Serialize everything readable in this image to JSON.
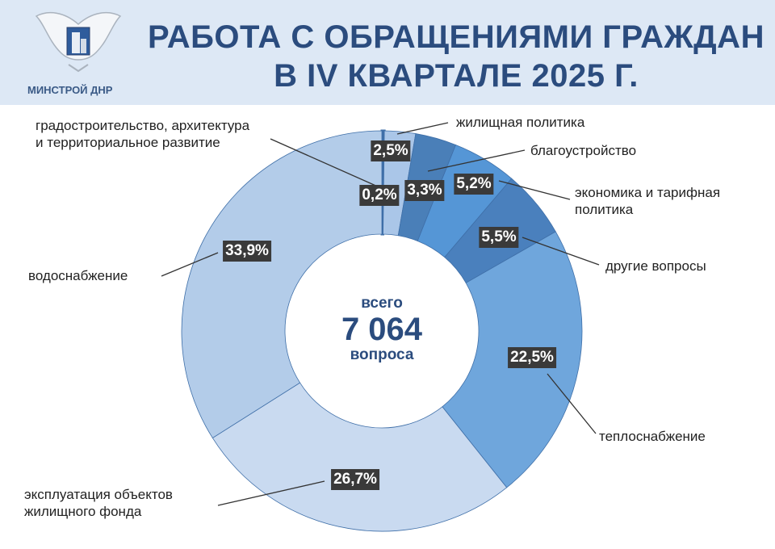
{
  "header": {
    "title_line1": "РАБОТА С ОБРАЩЕНИЯМИ ГРАЖДАН",
    "title_line2": "В IV КВАРТАЛЕ 2025 Г.",
    "logo_text": "МИНСТРОЙ ДНР",
    "background": "#dde8f5",
    "title_color": "#2b4c7e"
  },
  "center": {
    "top": "всего",
    "total": "7 064",
    "bottom": "вопроса"
  },
  "chart_data": {
    "type": "pie",
    "donut": true,
    "total": 7064,
    "slices": [
      {
        "label": "градостроительство, архитектура и территориальное развитие",
        "value": 0.2,
        "display": "0,2%",
        "color": "#3f6fa8"
      },
      {
        "label": "жилищная политика",
        "value": 2.5,
        "display": "2,5%",
        "color": "#aac6e8"
      },
      {
        "label": "благоустройство",
        "value": 3.3,
        "display": "3,3%",
        "color": "#4a7fb8"
      },
      {
        "label": "экономика и тарифная политика",
        "value": 5.2,
        "display": "5,2%",
        "color": "#5596d6"
      },
      {
        "label": "другие вопросы",
        "value": 5.5,
        "display": "5,5%",
        "color": "#4a80bd"
      },
      {
        "label": "теплоснабжение",
        "value": 22.5,
        "display": "22,5%",
        "color": "#6fa6dc"
      },
      {
        "label": "эксплуатация объектов жилищного фонда",
        "value": 26.7,
        "display": "26,7%",
        "color": "#c9daf0"
      },
      {
        "label": "водоснабжение",
        "value": 33.9,
        "display": "33,9%",
        "color": "#b3cce9"
      }
    ]
  },
  "labels": {
    "l0a": "градостроительство, архитектура",
    "l0b": "и территориальное развитие",
    "l3a": "экономика и тарифная",
    "l3b": "политика",
    "l6a": "эксплуатация объектов",
    "l6b": "жилищного фонда"
  }
}
